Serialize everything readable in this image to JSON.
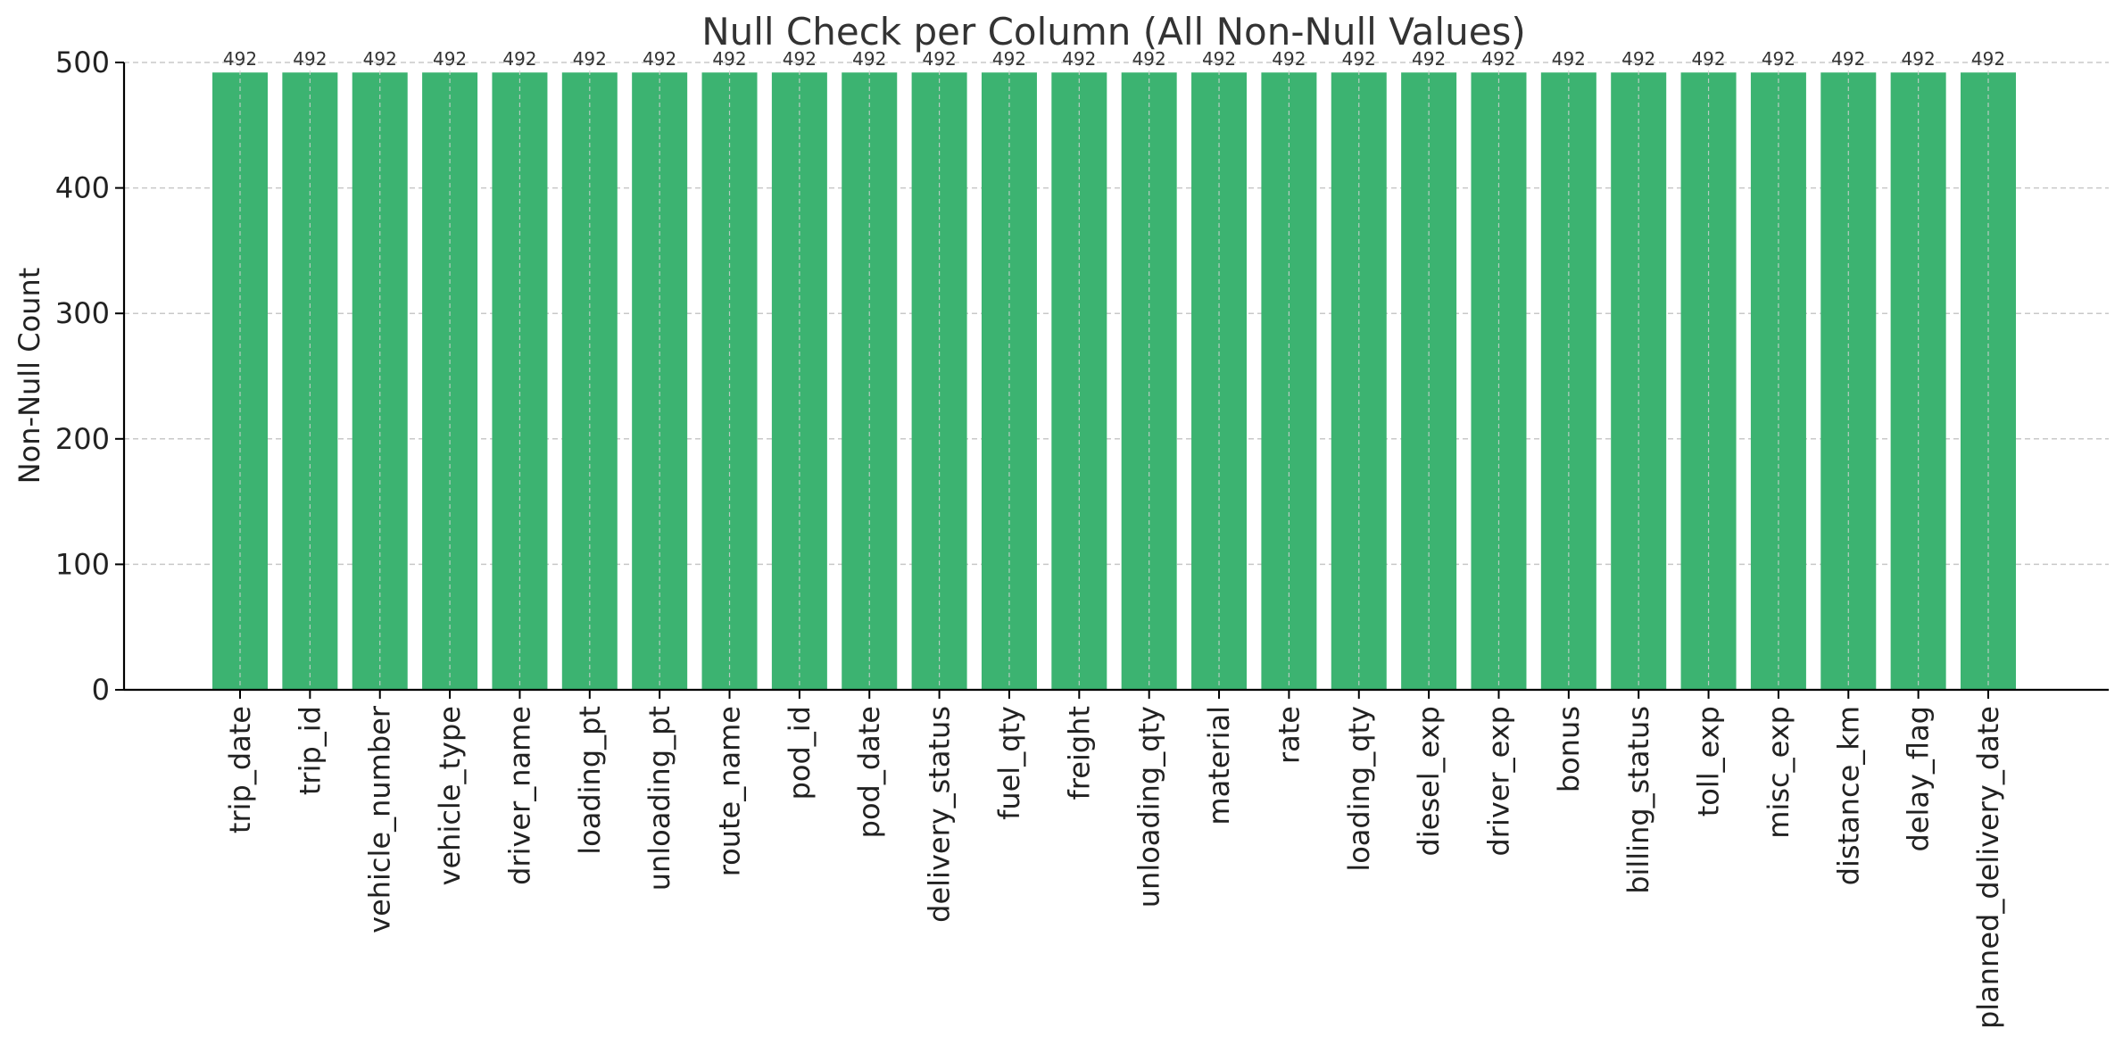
{
  "chart_data": {
    "type": "bar",
    "title": "Null Check per Column (All Non-Null Values)",
    "xlabel": "",
    "ylabel": "Non-Null Count",
    "ylim": [
      0,
      500
    ],
    "yticks": [
      0,
      100,
      200,
      300,
      400,
      500
    ],
    "grid": true,
    "legend": "none",
    "bar_color": "#3cb371",
    "categories": [
      "trip_date",
      "trip_id",
      "vehicle_number",
      "vehicle_type",
      "driver_name",
      "loading_pt",
      "unloading_pt",
      "route_name",
      "pod_id",
      "pod_date",
      "delivery_status",
      "fuel_qty",
      "freight",
      "unloading_qty",
      "material",
      "rate",
      "loading_qty",
      "diesel_exp",
      "driver_exp",
      "bonus",
      "billing_status",
      "toll_exp",
      "misc_exp",
      "distance_km",
      "delay_flag",
      "planned_delivery_date"
    ],
    "values": [
      492,
      492,
      492,
      492,
      492,
      492,
      492,
      492,
      492,
      492,
      492,
      492,
      492,
      492,
      492,
      492,
      492,
      492,
      492,
      492,
      492,
      492,
      492,
      492,
      492,
      492
    ],
    "data_labels": [
      "492",
      "492",
      "492",
      "492",
      "492",
      "492",
      "492",
      "492",
      "492",
      "492",
      "492",
      "492",
      "492",
      "492",
      "492",
      "492",
      "492",
      "492",
      "492",
      "492",
      "492",
      "492",
      "492",
      "492",
      "492",
      "492"
    ]
  }
}
